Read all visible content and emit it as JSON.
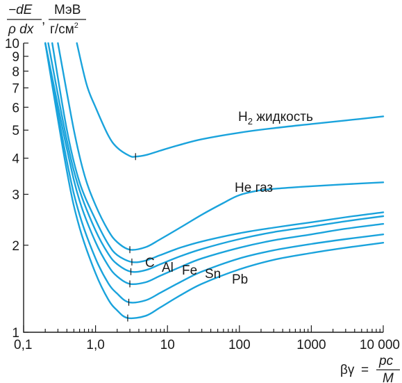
{
  "chart_data": {
    "type": "line",
    "x_scale": "log",
    "y_scale": "log",
    "xlim": [
      0.1,
      10000
    ],
    "ylim": [
      1,
      10
    ],
    "x_ticks": [
      {
        "value": 0.1,
        "label": "0,1"
      },
      {
        "value": 1,
        "label": "1,0"
      },
      {
        "value": 10,
        "label": "10"
      },
      {
        "value": 100,
        "label": "100"
      },
      {
        "value": 1000,
        "label": "1000"
      },
      {
        "value": 10000,
        "label": "10 000"
      }
    ],
    "y_ticks": [
      {
        "value": 1,
        "label": "1"
      },
      {
        "value": 2,
        "label": "2"
      },
      {
        "value": 3,
        "label": "3"
      },
      {
        "value": 4,
        "label": "4"
      },
      {
        "value": 5,
        "label": "5"
      },
      {
        "value": 6,
        "label": "6"
      },
      {
        "value": 7,
        "label": "7"
      },
      {
        "value": 8,
        "label": "8"
      },
      {
        "value": 9,
        "label": "9"
      },
      {
        "value": 10,
        "label": "10"
      }
    ],
    "ylabel": {
      "numerator": "−dE",
      "denominator": "ρ dx",
      "separator": ",",
      "unit_numerator": "МэВ",
      "unit_denominator": "г/см",
      "unit_denominator_sup": "2"
    },
    "xlabel": {
      "lhs": "βγ",
      "eq": "=",
      "numerator": "pc",
      "denominator": "M"
    },
    "line_color": "#1aa3dc",
    "series": [
      {
        "name": "H",
        "name_sub": "2",
        "name_suffix": " жидкость",
        "min_x": 3.6,
        "min_y": 4.05,
        "x": [
          0.55,
          0.75,
          1,
          1.5,
          2,
          3,
          3.6,
          5,
          8,
          15,
          30,
          100,
          300,
          1000,
          3000,
          10000
        ],
        "y": [
          10,
          7.2,
          6.0,
          4.8,
          4.35,
          4.07,
          4.05,
          4.1,
          4.25,
          4.45,
          4.65,
          4.9,
          5.08,
          5.25,
          5.4,
          5.58
        ]
      },
      {
        "name": "He газ",
        "min_x": 3.0,
        "min_y": 1.93,
        "x": [
          0.3,
          0.5,
          0.7,
          1,
          1.5,
          2,
          3,
          5,
          8,
          15,
          30,
          60,
          100,
          200,
          400,
          1000,
          3000,
          10000
        ],
        "y": [
          10,
          5.0,
          3.5,
          2.75,
          2.25,
          2.05,
          1.93,
          1.97,
          2.1,
          2.3,
          2.55,
          2.8,
          2.98,
          3.1,
          3.15,
          3.2,
          3.25,
          3.3
        ]
      },
      {
        "name": "C",
        "min_x": 3.2,
        "min_y": 1.75,
        "x": [
          0.25,
          0.4,
          0.6,
          1,
          1.5,
          2,
          3.2,
          5,
          8,
          15,
          30,
          100,
          300,
          1000,
          3000,
          10000
        ],
        "y": [
          10,
          5.0,
          3.3,
          2.45,
          2.02,
          1.85,
          1.75,
          1.77,
          1.85,
          1.96,
          2.06,
          2.2,
          2.3,
          2.4,
          2.5,
          2.6
        ]
      },
      {
        "name": "Al",
        "min_x": 3.1,
        "min_y": 1.62,
        "x": [
          0.22,
          0.4,
          0.6,
          1,
          1.5,
          2,
          3.1,
          5,
          8,
          15,
          30,
          100,
          300,
          1000,
          3000,
          10000
        ],
        "y": [
          10,
          4.6,
          3.1,
          2.25,
          1.87,
          1.72,
          1.62,
          1.64,
          1.72,
          1.83,
          1.94,
          2.1,
          2.22,
          2.32,
          2.42,
          2.52
        ]
      },
      {
        "name": "Fe",
        "min_x": 3.0,
        "min_y": 1.47,
        "x": [
          0.2,
          0.4,
          0.6,
          1,
          1.5,
          2,
          3.0,
          5,
          8,
          15,
          30,
          100,
          300,
          1000,
          3000,
          10000
        ],
        "y": [
          10,
          4.3,
          2.85,
          2.05,
          1.7,
          1.56,
          1.47,
          1.49,
          1.57,
          1.68,
          1.8,
          1.96,
          2.08,
          2.18,
          2.28,
          2.37
        ]
      },
      {
        "name": "Sn",
        "min_x": 2.9,
        "min_y": 1.27,
        "x": [
          0.2,
          0.4,
          0.6,
          1,
          1.5,
          2,
          2.9,
          5,
          8,
          15,
          30,
          100,
          300,
          1000,
          3000,
          10000
        ],
        "y": [
          10,
          3.9,
          2.55,
          1.8,
          1.48,
          1.36,
          1.27,
          1.29,
          1.37,
          1.49,
          1.62,
          1.8,
          1.92,
          2.02,
          2.1,
          2.18
        ]
      },
      {
        "name": "Pb",
        "min_x": 2.8,
        "min_y": 1.12,
        "x": [
          0.2,
          0.4,
          0.6,
          1,
          1.5,
          2,
          2.8,
          5,
          8,
          15,
          30,
          100,
          300,
          1000,
          3000,
          10000
        ],
        "y": [
          10,
          3.6,
          2.3,
          1.6,
          1.3,
          1.19,
          1.12,
          1.14,
          1.22,
          1.34,
          1.47,
          1.65,
          1.78,
          1.88,
          1.96,
          2.04
        ]
      }
    ]
  }
}
